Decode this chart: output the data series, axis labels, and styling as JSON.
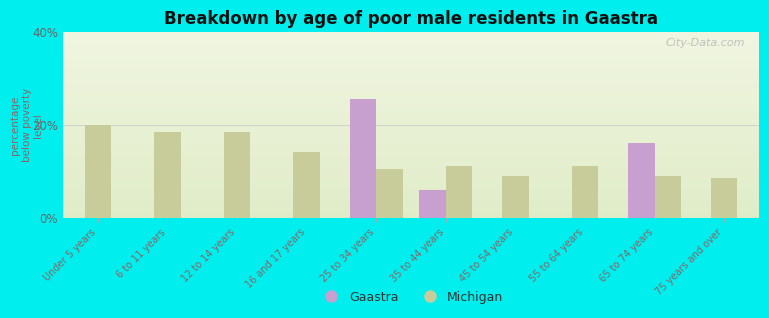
{
  "title": "Breakdown by age of poor male residents in Gaastra",
  "ylabel": "percentage\nbelow poverty\nlevel",
  "background_color": "#00EEEE",
  "categories": [
    "Under 5 years",
    "6 to 11 years",
    "12 to 14 years",
    "16 and 17 years",
    "25 to 34 years",
    "35 to 44 years",
    "45 to 54 years",
    "55 to 64 years",
    "65 to 74 years",
    "75 years and over"
  ],
  "gaastra_values": [
    null,
    null,
    null,
    null,
    25.5,
    6.0,
    null,
    null,
    16.0,
    null
  ],
  "michigan_values": [
    20.0,
    18.5,
    18.5,
    14.0,
    10.5,
    11.0,
    9.0,
    11.0,
    9.0,
    8.5
  ],
  "gaastra_color": "#c8a0d0",
  "michigan_color": "#c8cc9a",
  "ylim": [
    0,
    40
  ],
  "yticks": [
    0,
    20,
    40
  ],
  "ytick_labels": [
    "0%",
    "20%",
    "40%"
  ],
  "watermark": "City-Data.com",
  "bar_width": 0.38,
  "gradient_top": "#f0f5e0",
  "gradient_bottom": "#e0ecc8"
}
